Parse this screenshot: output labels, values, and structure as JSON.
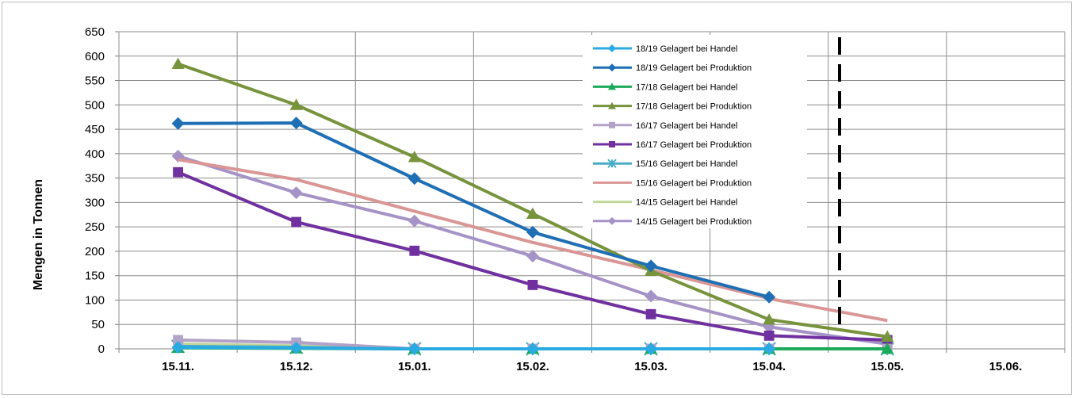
{
  "chart_data": {
    "type": "line",
    "title": "",
    "xlabel": "",
    "ylabel": "Mengen in Tonnen",
    "ylim": [
      0,
      650
    ],
    "y_ticks": [
      0,
      50,
      100,
      150,
      200,
      250,
      300,
      350,
      400,
      450,
      500,
      550,
      600,
      650
    ],
    "categories": [
      "15.11.",
      "15.12.",
      "15.01.",
      "15.02.",
      "15.03.",
      "15.04.",
      "15.05.",
      "15.06."
    ],
    "grid": true,
    "legend_position": "top-right",
    "reference_line": {
      "style": "dashed",
      "color": "#000000",
      "position": "between 15.04. and 15.05."
    },
    "series": [
      {
        "name": "18/19 Gelagert bei Handel",
        "color": "#29ABE2",
        "marker": "diamond",
        "values": [
          3,
          2,
          0,
          0,
          0,
          0,
          null,
          null
        ]
      },
      {
        "name": "18/19 Gelagert bei Produktion",
        "color": "#1F6FB5",
        "marker": "diamond",
        "values": [
          462,
          463,
          349,
          239,
          170,
          106,
          null,
          null
        ]
      },
      {
        "name": "17/18 Gelagert bei Handel",
        "color": "#1BAA5A",
        "marker": "triangle",
        "values": [
          2,
          1,
          0,
          0,
          0,
          0,
          0,
          null
        ]
      },
      {
        "name": "17/18 Gelagert bei Produktion",
        "color": "#77933C",
        "marker": "triangle",
        "values": [
          584,
          500,
          393,
          277,
          160,
          60,
          25,
          null
        ]
      },
      {
        "name": "16/17 Gelagert bei Handel",
        "color": "#B3A2C7",
        "marker": "square",
        "values": [
          18,
          13,
          0,
          0,
          0,
          0,
          0,
          null
        ]
      },
      {
        "name": "16/17 Gelagert bei Produktion",
        "color": "#7030A0",
        "marker": "square",
        "values": [
          362,
          260,
          201,
          131,
          71,
          27,
          18,
          null
        ]
      },
      {
        "name": "15/16 Gelagert bei Handel",
        "color": "#4BACC6",
        "marker": "star",
        "values": [
          5,
          3,
          0,
          0,
          0,
          0,
          0,
          null
        ]
      },
      {
        "name": "15/16 Gelagert bei Produktion",
        "color": "#D99694",
        "marker": "none",
        "values": [
          388,
          347,
          282,
          218,
          162,
          103,
          58,
          null
        ]
      },
      {
        "name": "14/15 Gelagert bei Handel",
        "color": "#C3D69B",
        "marker": "none",
        "values": [
          10,
          6,
          0,
          0,
          0,
          0,
          0,
          null
        ]
      },
      {
        "name": "14/15 Gelagert bei Produktion",
        "color": "#A593C7",
        "marker": "diamond",
        "values": [
          395,
          320,
          262,
          190,
          108,
          45,
          10,
          null
        ]
      }
    ]
  }
}
